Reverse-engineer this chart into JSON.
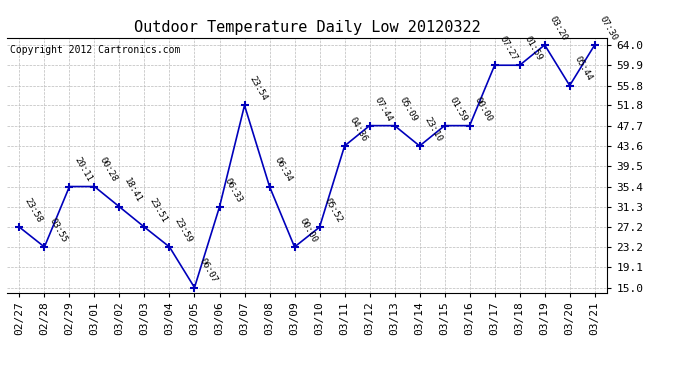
{
  "title": "Outdoor Temperature Daily Low 20120322",
  "copyright": "Copyright 2012 Cartronics.com",
  "x_labels": [
    "02/27",
    "02/28",
    "02/29",
    "03/01",
    "03/02",
    "03/03",
    "03/04",
    "03/05",
    "03/06",
    "03/07",
    "03/08",
    "03/09",
    "03/10",
    "03/11",
    "03/12",
    "03/13",
    "03/14",
    "03/15",
    "03/16",
    "03/17",
    "03/18",
    "03/19",
    "03/20",
    "03/21"
  ],
  "y_values": [
    27.2,
    23.2,
    35.4,
    35.4,
    31.3,
    27.2,
    23.2,
    15.0,
    31.3,
    51.8,
    35.4,
    23.2,
    27.2,
    43.6,
    47.7,
    47.7,
    43.6,
    47.7,
    47.7,
    59.9,
    59.9,
    64.0,
    55.8,
    64.0
  ],
  "point_labels": [
    "23:58",
    "03:55",
    "20:11",
    "00:28",
    "18:41",
    "23:51",
    "23:59",
    "06:07",
    "06:33",
    "23:54",
    "06:34",
    "00:00",
    "05:52",
    "04:36",
    "07:44",
    "05:09",
    "23:10",
    "01:59",
    "00:00",
    "07:27",
    "01:59",
    "03:20",
    "05:44",
    "07:30"
  ],
  "y_ticks": [
    15.0,
    19.1,
    23.2,
    27.2,
    31.3,
    35.4,
    39.5,
    43.6,
    47.7,
    51.8,
    55.8,
    59.9,
    64.0
  ],
  "y_min": 15.0,
  "y_max": 64.0,
  "line_color": "#0000bb",
  "marker_color": "#0000bb",
  "bg_color": "#ffffff",
  "grid_color": "#bbbbbb",
  "title_fontsize": 11,
  "copyright_fontsize": 7,
  "label_fontsize": 6.5,
  "tick_fontsize": 8
}
